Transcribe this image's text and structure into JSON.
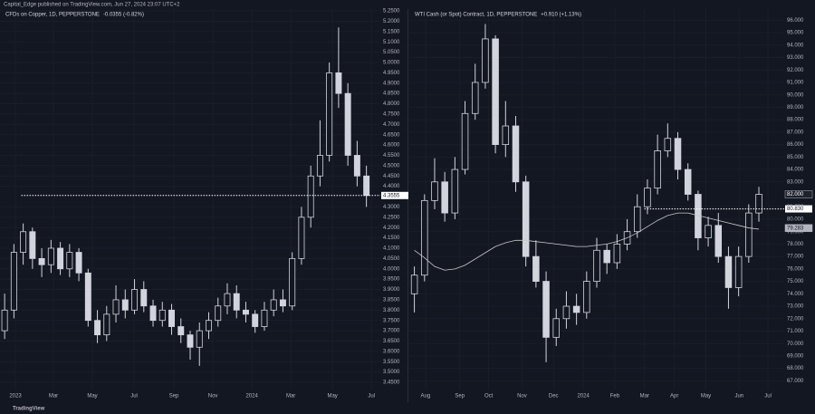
{
  "header": "Capital_Edge published on TradingView.com, Jun 27, 2024 23:07 UTC+2",
  "footer": "TradingView",
  "chart_data": [
    {
      "type": "candlestick",
      "title": "CFDs on Copper, 1D, PEPPERSTONE",
      "change": "-0.0355 (-0.82%)",
      "color": "#d1d4dc",
      "open": [
        3.7,
        3.8,
        4.08,
        4.18,
        4.05,
        4.02,
        4.1,
        4.0,
        4.08,
        3.98,
        3.75,
        3.68,
        3.78,
        3.85,
        3.8,
        3.9,
        3.82,
        3.75,
        3.8,
        3.72,
        3.68,
        3.62,
        3.7,
        3.75,
        3.82,
        3.88,
        3.8,
        3.78,
        3.72,
        3.8,
        3.85,
        3.82,
        4.05,
        4.25,
        4.45,
        4.55,
        4.95,
        4.85,
        4.55,
        4.45
      ],
      "high": [
        3.88,
        4.12,
        4.22,
        4.2,
        4.1,
        4.14,
        4.13,
        4.12,
        4.1,
        4.0,
        3.8,
        3.82,
        3.92,
        3.9,
        3.95,
        3.94,
        3.85,
        3.84,
        3.83,
        3.76,
        3.7,
        3.74,
        3.79,
        3.86,
        3.93,
        3.92,
        3.84,
        3.8,
        3.84,
        3.9,
        3.9,
        4.08,
        4.3,
        4.5,
        4.72,
        5.0,
        5.17,
        4.9,
        4.62,
        4.5
      ],
      "low": [
        3.66,
        3.76,
        4.02,
        4.0,
        3.96,
        3.98,
        3.97,
        3.96,
        3.94,
        3.72,
        3.64,
        3.65,
        3.74,
        3.76,
        3.78,
        3.79,
        3.72,
        3.72,
        3.68,
        3.64,
        3.56,
        3.53,
        3.66,
        3.72,
        3.78,
        3.76,
        3.74,
        3.69,
        3.7,
        3.77,
        3.79,
        3.8,
        4.02,
        4.2,
        4.4,
        4.52,
        4.78,
        4.5,
        4.4,
        4.3
      ],
      "close": [
        3.8,
        4.08,
        4.18,
        4.05,
        4.02,
        4.1,
        4.0,
        4.08,
        3.98,
        3.75,
        3.68,
        3.78,
        3.85,
        3.8,
        3.9,
        3.82,
        3.75,
        3.8,
        3.72,
        3.68,
        3.62,
        3.7,
        3.75,
        3.82,
        3.88,
        3.8,
        3.78,
        3.72,
        3.8,
        3.85,
        3.82,
        4.05,
        4.25,
        4.45,
        4.55,
        4.95,
        4.85,
        4.55,
        4.45,
        4.3555
      ],
      "xlim": [
        -0.5,
        40.5
      ],
      "xticks": [
        {
          "value": 1.16,
          "label": "2023"
        },
        {
          "value": 5.26,
          "label": "Mar"
        },
        {
          "value": 9.46,
          "label": "May"
        },
        {
          "value": 13.95,
          "label": "Jul"
        },
        {
          "value": 18.25,
          "label": "Sep"
        },
        {
          "value": 22.45,
          "label": "Nov"
        },
        {
          "value": 26.65,
          "label": "2024"
        },
        {
          "value": 30.85,
          "label": "Mar"
        },
        {
          "value": 35.34,
          "label": "May"
        },
        {
          "value": 39.54,
          "label": "Jul"
        }
      ],
      "ylim": [
        3.415,
        5.259
      ],
      "yticks": [
        {
          "value": 3.45,
          "label": "3.4500"
        },
        {
          "value": 3.5,
          "label": "3.5000"
        },
        {
          "value": 3.55,
          "label": "3.5500"
        },
        {
          "value": 3.6,
          "label": "3.6000"
        },
        {
          "value": 3.65,
          "label": "3.6500"
        },
        {
          "value": 3.7,
          "label": "3.7000"
        },
        {
          "value": 3.75,
          "label": "3.7500"
        },
        {
          "value": 3.8,
          "label": "3.8000"
        },
        {
          "value": 3.85,
          "label": "3.8500"
        },
        {
          "value": 3.9,
          "label": "3.9000"
        },
        {
          "value": 3.95,
          "label": "3.9500"
        },
        {
          "value": 4.0,
          "label": "4.0000"
        },
        {
          "value": 4.05,
          "label": "4.0500"
        },
        {
          "value": 4.1,
          "label": "4.1000"
        },
        {
          "value": 4.15,
          "label": "4.1500"
        },
        {
          "value": 4.2,
          "label": "4.2000"
        },
        {
          "value": 4.25,
          "label": "4.2500"
        },
        {
          "value": 4.3,
          "label": "4.3000"
        },
        {
          "value": 4.4,
          "label": "4.4000"
        },
        {
          "value": 4.45,
          "label": "4.4500"
        },
        {
          "value": 4.5,
          "label": "4.5000"
        },
        {
          "value": 4.55,
          "label": "4.5500"
        },
        {
          "value": 4.6,
          "label": "4.6000"
        },
        {
          "value": 4.65,
          "label": "4.6500"
        },
        {
          "value": 4.7,
          "label": "4.7000"
        },
        {
          "value": 4.75,
          "label": "4.7500"
        },
        {
          "value": 4.8,
          "label": "4.8000"
        },
        {
          "value": 4.85,
          "label": "4.8500"
        },
        {
          "value": 4.9,
          "label": "4.9000"
        },
        {
          "value": 4.95,
          "label": "4.9500"
        },
        {
          "value": 5.0,
          "label": "5.0000"
        },
        {
          "value": 5.05,
          "label": "5.0500"
        },
        {
          "value": 5.1,
          "label": "5.1000"
        },
        {
          "value": 5.15,
          "label": "5.1500"
        },
        {
          "value": 5.2,
          "label": "5.2000"
        },
        {
          "value": 5.25,
          "label": "5.2500"
        }
      ],
      "price_line": {
        "value": 4.3555,
        "label": "4.3555",
        "x_from": 1.8
      }
    },
    {
      "type": "candlestick",
      "title": "WTI Cash (or Spot) Contract, 1D, PEPPERSTONE",
      "change": "+0.910 (+1.13%)",
      "color": "#d1d4dc",
      "open": [
        74.0,
        75.5,
        81.5,
        83.0,
        80.5,
        84.0,
        88.5,
        91.0,
        94.5,
        86.0,
        87.5,
        83.0,
        77.0,
        75.0,
        70.5,
        72.0,
        73.0,
        72.5,
        75.0,
        77.5,
        76.5,
        78.0,
        79.0,
        81.0,
        82.5,
        85.5,
        86.5,
        84.0,
        82.0,
        78.5,
        79.5,
        77.0,
        74.5,
        77.0,
        80.5
      ],
      "high": [
        76.2,
        82.0,
        84.9,
        83.8,
        85.0,
        89.5,
        92.5,
        95.7,
        94.8,
        89.5,
        88.3,
        83.5,
        78.3,
        75.8,
        72.8,
        74.2,
        74.0,
        75.8,
        78.5,
        78.0,
        78.8,
        80.0,
        82.0,
        83.2,
        86.8,
        87.7,
        87.0,
        84.5,
        82.3,
        80.2,
        80.5,
        77.8,
        77.8,
        81.2,
        82.6
      ],
      "low": [
        72.5,
        75.0,
        80.8,
        79.8,
        80.0,
        83.6,
        88.0,
        90.5,
        85.3,
        85.0,
        82.2,
        76.2,
        74.5,
        68.5,
        69.8,
        71.2,
        71.5,
        72.0,
        74.5,
        75.6,
        76.0,
        77.5,
        78.5,
        80.4,
        82.0,
        85.0,
        83.2,
        81.5,
        77.5,
        77.8,
        76.5,
        72.8,
        73.8,
        76.5,
        79.8
      ],
      "close": [
        75.5,
        81.5,
        83.0,
        80.5,
        84.0,
        88.5,
        91.0,
        94.5,
        86.0,
        87.5,
        83.0,
        77.0,
        75.0,
        70.5,
        72.0,
        73.0,
        72.5,
        75.0,
        77.5,
        76.5,
        78.0,
        79.0,
        81.0,
        82.5,
        85.5,
        86.5,
        84.0,
        82.0,
        78.5,
        79.5,
        77.0,
        74.5,
        77.0,
        80.5,
        82.0
      ],
      "overlay": {
        "color": "#c8c8c8",
        "values": [
          77.5,
          76.9,
          76.2,
          75.9,
          76.0,
          76.3,
          76.8,
          77.3,
          77.8,
          78.1,
          78.3,
          78.3,
          78.2,
          78.1,
          78.0,
          77.9,
          77.8,
          77.8,
          77.9,
          78.0,
          78.2,
          78.5,
          78.9,
          79.4,
          79.9,
          80.3,
          80.5,
          80.5,
          80.3,
          80.1,
          79.9,
          79.7,
          79.5,
          79.3,
          79.2
        ]
      },
      "xlim": [
        -0.5,
        36.5
      ],
      "xticks": [
        {
          "value": 1.1,
          "label": "Aug"
        },
        {
          "value": 4.48,
          "label": "Sep"
        },
        {
          "value": 7.33,
          "label": "Oct"
        },
        {
          "value": 10.62,
          "label": "Nov"
        },
        {
          "value": 13.73,
          "label": "Dec"
        },
        {
          "value": 16.67,
          "label": "2024"
        },
        {
          "value": 19.78,
          "label": "Feb"
        },
        {
          "value": 22.72,
          "label": "Mar"
        },
        {
          "value": 25.66,
          "label": "Apr"
        },
        {
          "value": 28.77,
          "label": "May"
        },
        {
          "value": 32.06,
          "label": "Jun"
        },
        {
          "value": 34.9,
          "label": "Jul"
        }
      ],
      "ylim": [
        66.3,
        96.9
      ],
      "yticks": [
        {
          "value": 67,
          "label": "67.000"
        },
        {
          "value": 68,
          "label": "68.000"
        },
        {
          "value": 69,
          "label": "69.000"
        },
        {
          "value": 70,
          "label": "70.000"
        },
        {
          "value": 71,
          "label": "71.000"
        },
        {
          "value": 72,
          "label": "72.000"
        },
        {
          "value": 73,
          "label": "73.000"
        },
        {
          "value": 74,
          "label": "74.000"
        },
        {
          "value": 75,
          "label": "75.000"
        },
        {
          "value": 76,
          "label": "76.000"
        },
        {
          "value": 77,
          "label": "77.000"
        },
        {
          "value": 78,
          "label": "78.000"
        },
        {
          "value": 79,
          "label": "79.000"
        },
        {
          "value": 80,
          "label": "80.000"
        },
        {
          "value": 81,
          "label": "81.000"
        },
        {
          "value": 83,
          "label": "83.000"
        },
        {
          "value": 84,
          "label": "84.000"
        },
        {
          "value": 85,
          "label": "85.000"
        },
        {
          "value": 86,
          "label": "86.000"
        },
        {
          "value": 87,
          "label": "87.000"
        },
        {
          "value": 88,
          "label": "88.000"
        },
        {
          "value": 89,
          "label": "89.000"
        },
        {
          "value": 90,
          "label": "90.000"
        },
        {
          "value": 91,
          "label": "91.000"
        },
        {
          "value": 92,
          "label": "92.000"
        },
        {
          "value": 93,
          "label": "93.000"
        },
        {
          "value": 94,
          "label": "94.000"
        },
        {
          "value": 95,
          "label": "95.000"
        },
        {
          "value": 96,
          "label": "96.000"
        }
      ],
      "price_line": {
        "value": 80.83,
        "label": "80.830",
        "x_from": 22.7
      },
      "markers": [
        {
          "value": 82.0,
          "label": "82.000"
        },
        {
          "value": 79.283,
          "label": "79.283"
        }
      ]
    }
  ]
}
